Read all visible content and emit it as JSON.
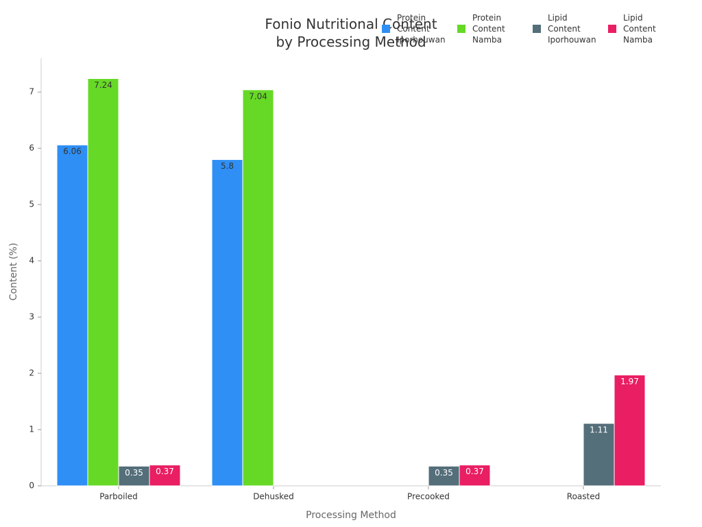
{
  "chart_data": {
    "type": "bar",
    "title": "Fonio Nutritional Content by Processing Method",
    "x_label": "Processing Method",
    "y_label": "Content (%)",
    "categories": [
      "Parboiled",
      "Dehusked",
      "Precooked",
      "Roasted"
    ],
    "series": [
      {
        "name": "Protein Content Iporhouwan",
        "color": "#2f8ff5",
        "values": [
          6.06,
          5.8,
          null,
          null
        ]
      },
      {
        "name": "Protein Content Namba",
        "color": "#66d926",
        "values": [
          7.24,
          7.04,
          null,
          null
        ]
      },
      {
        "name": "Lipid Content Iporhouwan",
        "color": "#546e7a",
        "values": [
          0.35,
          null,
          0.35,
          1.11
        ]
      },
      {
        "name": "Lipid Content Namba",
        "color": "#e91e63",
        "values": [
          0.37,
          null,
          0.37,
          1.97
        ]
      }
    ],
    "ylim": [
      0,
      7.6
    ],
    "yticks": [
      0,
      1,
      2,
      3,
      4,
      5,
      6,
      7
    ],
    "legend": "top-right"
  }
}
